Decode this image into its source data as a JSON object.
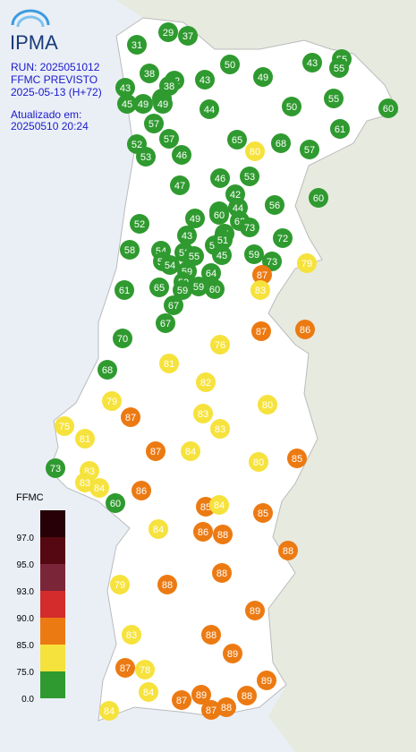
{
  "header": {
    "logo": "IPMA",
    "run": "RUN: 2025051012",
    "product": "FFMC PREVISTO",
    "forecast": "2025-05-13 (H+72)",
    "updated_label": "Atualizado em:",
    "updated": "20250510 20:24"
  },
  "legend": {
    "title": "FFMC",
    "classes": [
      {
        "value": 0,
        "label": "0.0",
        "color": "#2f9a2f"
      },
      {
        "value": 75,
        "label": "75.0",
        "color": "#f6e23c"
      },
      {
        "value": 85,
        "label": "85.0",
        "color": "#ec7a12"
      },
      {
        "value": 90,
        "label": "90.0",
        "color": "#d42c2c"
      },
      {
        "value": 93,
        "label": "93.0",
        "color": "#7b2638"
      },
      {
        "value": 95,
        "label": "95.0",
        "color": "#550811"
      },
      {
        "value": 97,
        "label": "97.0",
        "color": "#260006"
      }
    ]
  },
  "markers": [
    31,
    29,
    37,
    50,
    49,
    43,
    55,
    55,
    38,
    43,
    32,
    38,
    43,
    47,
    45,
    49,
    49,
    44,
    50,
    55,
    60,
    57,
    61,
    57,
    65,
    52,
    53,
    46,
    80,
    68,
    57,
    46,
    53,
    47,
    42,
    60,
    56,
    44,
    61,
    60,
    49,
    62,
    73,
    52,
    61,
    43,
    72,
    52,
    54,
    52,
    55,
    58,
    51,
    45,
    59,
    73,
    79,
    55,
    54,
    59,
    64,
    87,
    61,
    65,
    59,
    59,
    59,
    60,
    83,
    67,
    67,
    87,
    86,
    70,
    76,
    81,
    68,
    82,
    79,
    80,
    87,
    83,
    83,
    75,
    81,
    87,
    84,
    80,
    85,
    73,
    83,
    83,
    84,
    86,
    60,
    85,
    84,
    85,
    84,
    86,
    88,
    88,
    88,
    79,
    88,
    89,
    83,
    88,
    89,
    87,
    78,
    89,
    84,
    89,
    87,
    88,
    87,
    88,
    84
  ]
}
